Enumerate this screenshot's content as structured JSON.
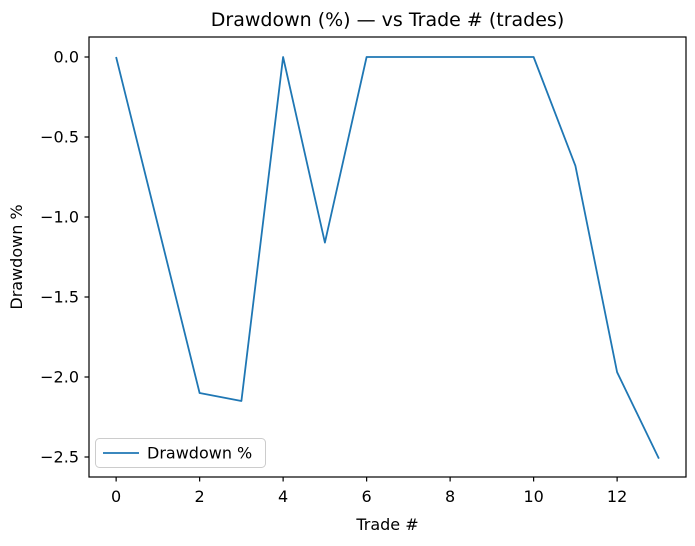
{
  "chart_data": {
    "type": "line",
    "title": "Drawdown (%) — vs Trade # (trades)",
    "xlabel": "Trade #",
    "ylabel": "Drawdown %",
    "x": [
      0,
      1,
      2,
      3,
      4,
      5,
      6,
      7,
      8,
      9,
      10,
      11,
      12,
      13
    ],
    "series": [
      {
        "name": "Drawdown %",
        "color": "#1f77b4",
        "values": [
          0.0,
          -1.05,
          -2.1,
          -2.15,
          0.0,
          -1.16,
          0.0,
          0.0,
          0.0,
          0.0,
          0.0,
          -0.68,
          -1.97,
          -2.51
        ]
      }
    ],
    "xticks": [
      0,
      2,
      4,
      6,
      8,
      10,
      12
    ],
    "yticks": [
      0.0,
      -0.5,
      -1.0,
      -1.5,
      -2.0,
      -2.5
    ],
    "xlim": [
      -0.65,
      13.65
    ],
    "ylim": [
      -2.625,
      0.125
    ],
    "grid": false,
    "legend": {
      "position": "lower-left",
      "entries": [
        "Drawdown %"
      ]
    },
    "colors": {
      "line": "#1f77b4",
      "spine": "#000000",
      "legend_border": "#cccccc",
      "background": "#ffffff"
    }
  }
}
